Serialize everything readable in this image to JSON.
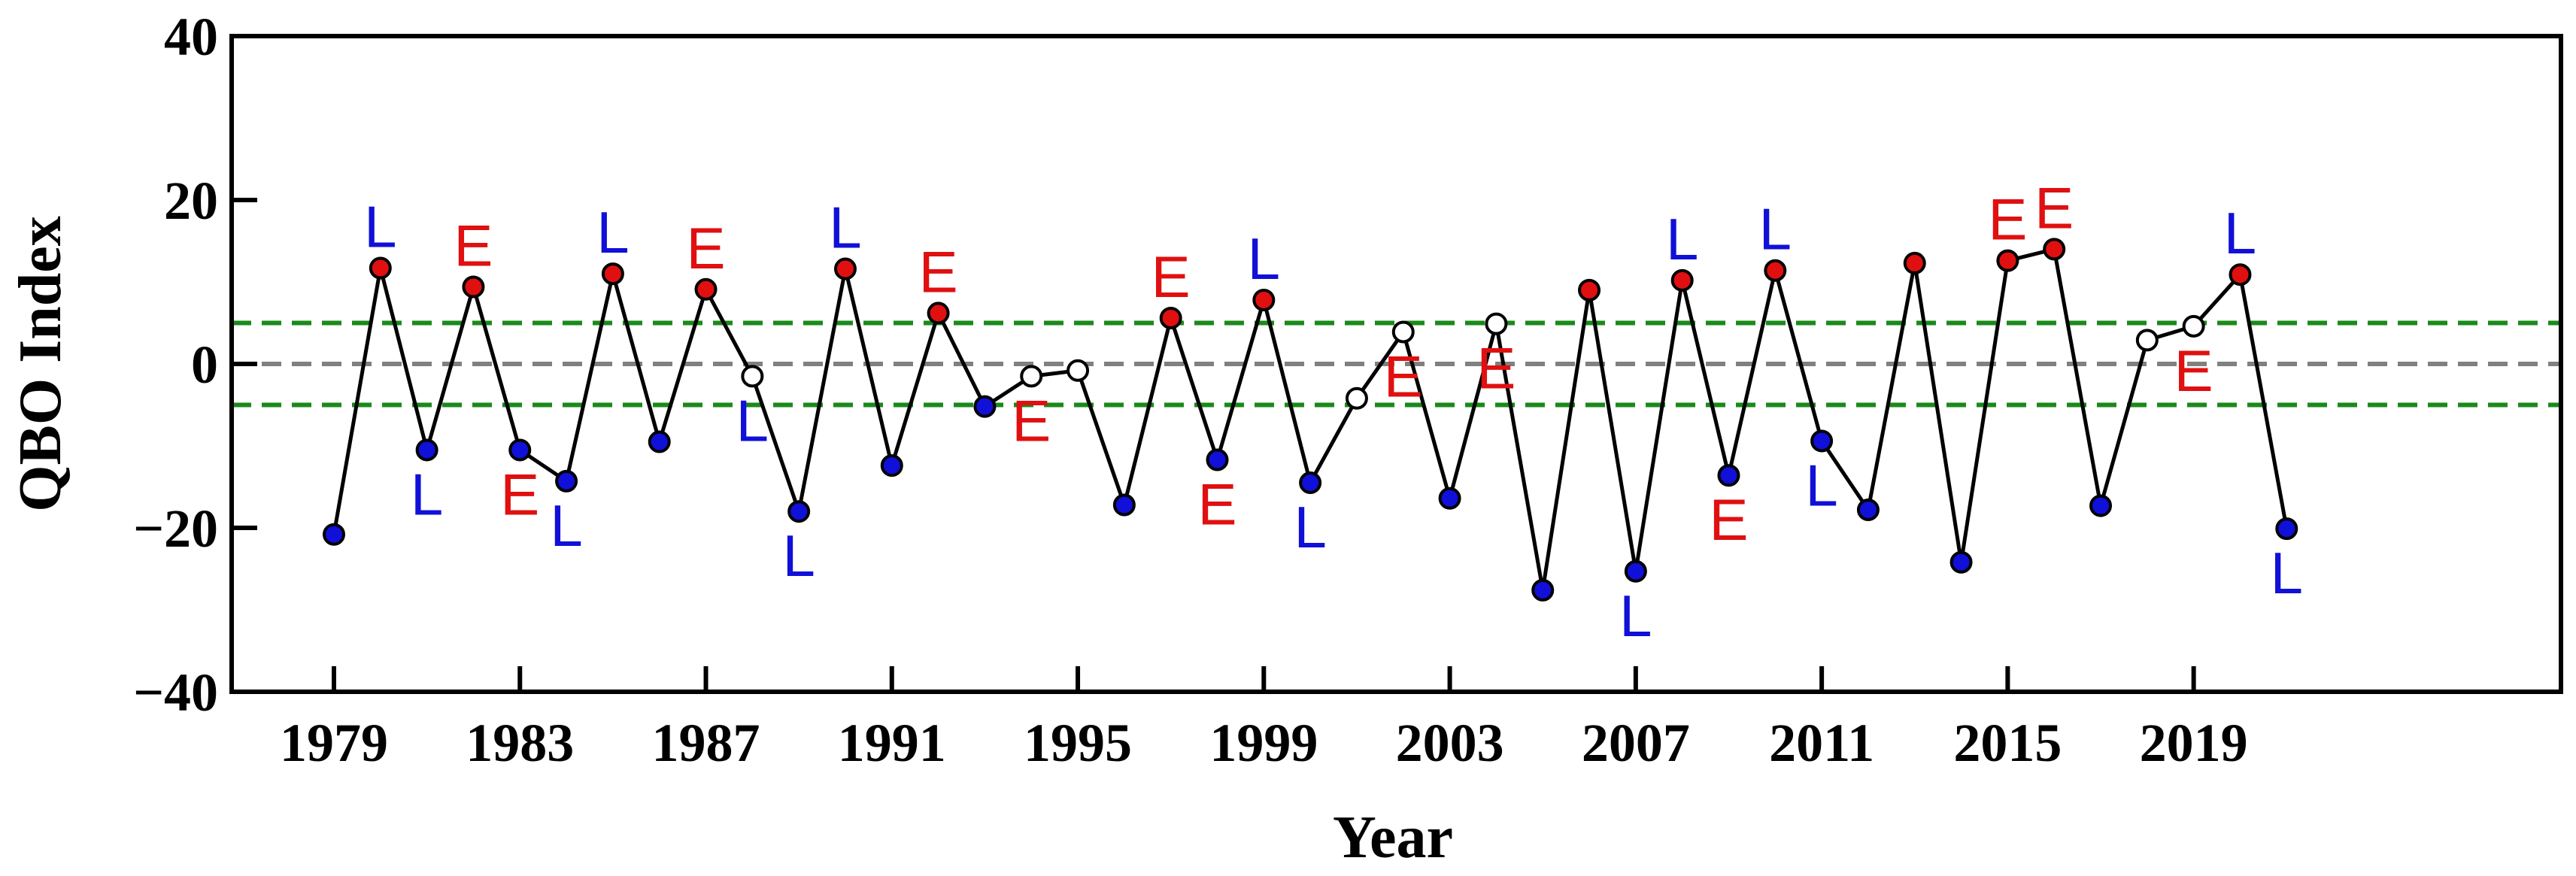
{
  "chart_data": {
    "type": "line",
    "title": "",
    "xlabel": "Year",
    "ylabel": "QBO Index",
    "xlim": [
      1976.8,
      2026.9
    ],
    "ylim": [
      -40,
      40
    ],
    "xticks": [
      1979,
      1983,
      1987,
      1991,
      1995,
      1999,
      2003,
      2007,
      2011,
      2015,
      2019
    ],
    "yticks": [
      -40,
      -20,
      0,
      20,
      40
    ],
    "ytick_labels": [
      "−40",
      "−20",
      "0",
      "20",
      "40"
    ],
    "reference_lines": [
      {
        "name": "zero-line",
        "y": 0,
        "color": "#808080",
        "style": "dashed"
      },
      {
        "name": "upper-threshold-line",
        "y": 5,
        "color": "#1a8a1a",
        "style": "dashed"
      },
      {
        "name": "lower-threshold-line",
        "y": -5,
        "color": "#1a8a1a",
        "style": "dashed"
      }
    ],
    "colors": {
      "blue": "#1010d8",
      "red": "#e01010",
      "white": "#ffffff",
      "line": "#000000"
    },
    "series": [
      {
        "name": "QBO Index",
        "points": [
          {
            "x": 1979,
            "y": -20.8,
            "color": "blue",
            "label": null
          },
          {
            "x": 1980,
            "y": 11.7,
            "color": "red",
            "label": "L",
            "label_color": "blue",
            "label_pos": "above"
          },
          {
            "x": 1981,
            "y": -10.5,
            "color": "blue",
            "label": "L",
            "label_color": "blue",
            "label_pos": "below"
          },
          {
            "x": 1982,
            "y": 9.4,
            "color": "red",
            "label": "E",
            "label_color": "red",
            "label_pos": "above"
          },
          {
            "x": 1983,
            "y": -10.5,
            "color": "blue",
            "label": "E",
            "label_color": "red",
            "label_pos": "below"
          },
          {
            "x": 1984,
            "y": -14.3,
            "color": "blue",
            "label": "L",
            "label_color": "blue",
            "label_pos": "below"
          },
          {
            "x": 1985,
            "y": 11.0,
            "color": "red",
            "label": "L",
            "label_color": "blue",
            "label_pos": "above"
          },
          {
            "x": 1986,
            "y": -9.5,
            "color": "blue",
            "label": null
          },
          {
            "x": 1987,
            "y": 9.1,
            "color": "red",
            "label": "E",
            "label_color": "red",
            "label_pos": "above"
          },
          {
            "x": 1988,
            "y": -1.5,
            "color": "white",
            "label": "L",
            "label_color": "blue",
            "label_pos": "below"
          },
          {
            "x": 1989,
            "y": -18.0,
            "color": "blue",
            "label": "L",
            "label_color": "blue",
            "label_pos": "below"
          },
          {
            "x": 1990,
            "y": 11.6,
            "color": "red",
            "label": "L",
            "label_color": "blue",
            "label_pos": "above"
          },
          {
            "x": 1991,
            "y": -12.4,
            "color": "blue",
            "label": null
          },
          {
            "x": 1992,
            "y": 6.2,
            "color": "red",
            "label": "E",
            "label_color": "red",
            "label_pos": "above"
          },
          {
            "x": 1993,
            "y": -5.2,
            "color": "blue",
            "label": null
          },
          {
            "x": 1994,
            "y": -1.5,
            "color": "white",
            "label": "E",
            "label_color": "red",
            "label_pos": "below"
          },
          {
            "x": 1995,
            "y": -0.8,
            "color": "white",
            "label": null
          },
          {
            "x": 1996,
            "y": -17.2,
            "color": "blue",
            "label": null
          },
          {
            "x": 1997,
            "y": 5.6,
            "color": "red",
            "label": "E",
            "label_color": "red",
            "label_pos": "above"
          },
          {
            "x": 1998,
            "y": -11.7,
            "color": "blue",
            "label": "E",
            "label_color": "red",
            "label_pos": "below"
          },
          {
            "x": 1999,
            "y": 7.8,
            "color": "red",
            "label": "L",
            "label_color": "blue",
            "label_pos": "above"
          },
          {
            "x": 2000,
            "y": -14.5,
            "color": "blue",
            "label": "L",
            "label_color": "blue",
            "label_pos": "below"
          },
          {
            "x": 2001,
            "y": -4.2,
            "color": "white",
            "label": null
          },
          {
            "x": 2002,
            "y": 3.9,
            "color": "white",
            "label": "E",
            "label_color": "red",
            "label_pos": "below"
          },
          {
            "x": 2003,
            "y": -16.4,
            "color": "blue",
            "label": null
          },
          {
            "x": 2004,
            "y": 4.9,
            "color": "white",
            "label": "E",
            "label_color": "red",
            "label_pos": "below"
          },
          {
            "x": 2005,
            "y": -27.6,
            "color": "blue",
            "label": null
          },
          {
            "x": 2006,
            "y": 9.0,
            "color": "red",
            "label": null
          },
          {
            "x": 2007,
            "y": -25.3,
            "color": "blue",
            "label": "L",
            "label_color": "blue",
            "label_pos": "below"
          },
          {
            "x": 2008,
            "y": 10.2,
            "color": "red",
            "label": "L",
            "label_color": "blue",
            "label_pos": "above"
          },
          {
            "x": 2009,
            "y": -13.6,
            "color": "blue",
            "label": "E",
            "label_color": "red",
            "label_pos": "below"
          },
          {
            "x": 2010,
            "y": 11.4,
            "color": "red",
            "label": "L",
            "label_color": "blue",
            "label_pos": "above"
          },
          {
            "x": 2011,
            "y": -9.4,
            "color": "blue",
            "label": "L",
            "label_color": "blue",
            "label_pos": "below"
          },
          {
            "x": 2012,
            "y": -17.8,
            "color": "blue",
            "label": null
          },
          {
            "x": 2013,
            "y": 12.3,
            "color": "red",
            "label": null
          },
          {
            "x": 2014,
            "y": -24.2,
            "color": "blue",
            "label": null
          },
          {
            "x": 2015,
            "y": 12.6,
            "color": "red",
            "label": "E",
            "label_color": "red",
            "label_pos": "above"
          },
          {
            "x": 2016,
            "y": 14.0,
            "color": "red",
            "label": "E",
            "label_color": "red",
            "label_pos": "above"
          },
          {
            "x": 2017,
            "y": -17.3,
            "color": "blue",
            "label": null
          },
          {
            "x": 2018,
            "y": 2.9,
            "color": "white",
            "label": null
          },
          {
            "x": 2019,
            "y": 4.6,
            "color": "white",
            "label": "E",
            "label_color": "red",
            "label_pos": "below"
          },
          {
            "x": 2020,
            "y": 10.9,
            "color": "red",
            "label": "L",
            "label_color": "blue",
            "label_pos": "above"
          },
          {
            "x": 2021,
            "y": -20.1,
            "color": "blue",
            "label": "L",
            "label_color": "blue",
            "label_pos": "below"
          }
        ]
      }
    ]
  }
}
